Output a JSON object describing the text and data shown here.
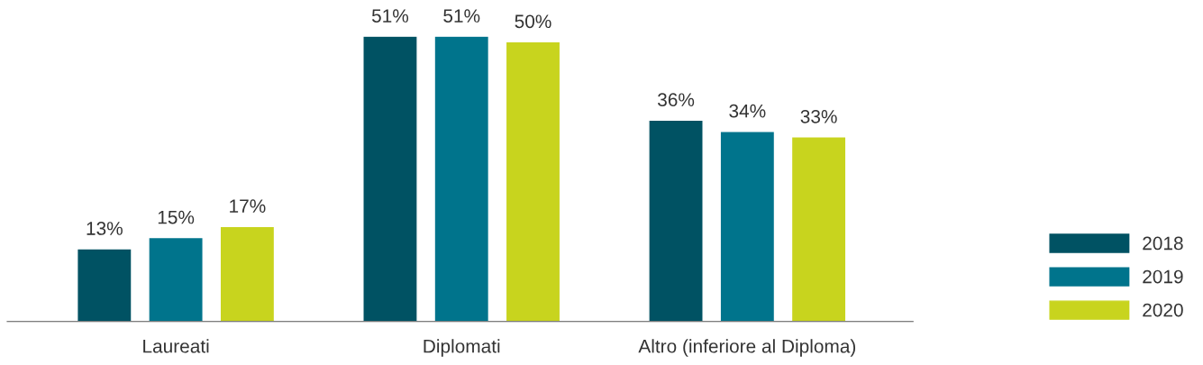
{
  "chart_data": {
    "type": "bar",
    "categories": [
      "Laureati",
      "Diplomati",
      "Altro (inferiore al Diploma)"
    ],
    "series": [
      {
        "name": "2018",
        "color": "#005263",
        "values": [
          13,
          51,
          36
        ],
        "value_labels": [
          "13%",
          "51%",
          "36%"
        ]
      },
      {
        "name": "2019",
        "color": "#00748c",
        "values": [
          15,
          51,
          34
        ],
        "value_labels": [
          "15%",
          "51%",
          "34%"
        ]
      },
      {
        "name": "2020",
        "color": "#c8d41e",
        "values": [
          17,
          50,
          33
        ],
        "value_labels": [
          "17%",
          "50%",
          "33%"
        ]
      }
    ],
    "data_labels": false,
    "grid": false,
    "legend": "right"
  }
}
